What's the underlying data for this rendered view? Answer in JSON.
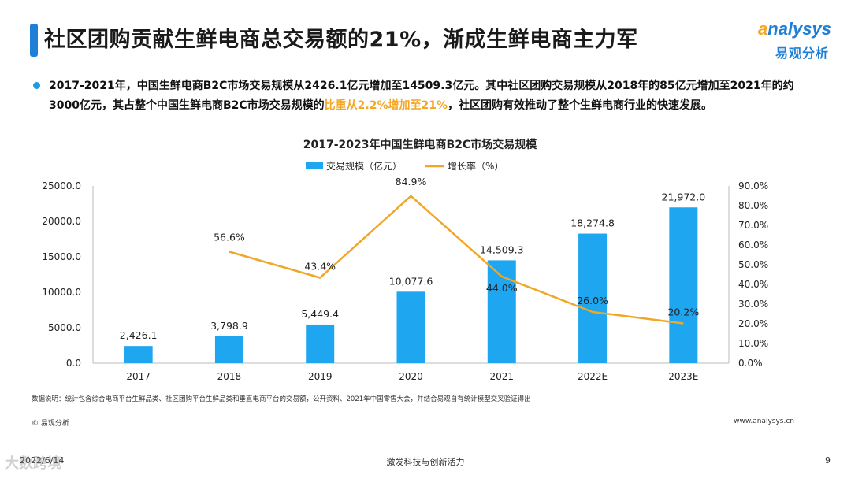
{
  "header": {
    "title": "社区团购贡献生鲜电商总交易额的21%，渐成生鲜电商主力军",
    "logo_en_a": "a",
    "logo_en_rest": "nalysys",
    "logo_cn": "易观分析"
  },
  "summary": {
    "part1": "2017-2021年，中国生鲜电商B2C市场交易规模从2426.1亿元增加至14509.3亿元。其中社区团购交易规模从2018年的85亿元增加至2021年的约3000亿元，其占整个中国生鲜电商B2C市场交易规模的",
    "highlight": "比重从2.2%增加至21%",
    "part2": "，社区团购有效推动了整个生鲜电商行业的快速发展。"
  },
  "colors": {
    "bar": "#1ea7f0",
    "line": "#f0a626",
    "accent": "#1e7fd6"
  },
  "chart_data": {
    "type": "bar",
    "title": "2017-2023年中国生鲜电商B2C市场交易规模",
    "categories": [
      "2017",
      "2018",
      "2019",
      "2020",
      "2021",
      "2022E",
      "2023E"
    ],
    "series": [
      {
        "name": "交易规模（亿元）",
        "type": "bar",
        "axis": "left",
        "values": [
          2426.1,
          3798.9,
          5449.4,
          10077.6,
          14509.3,
          18274.8,
          21972.0
        ],
        "labels": [
          "2,426.1",
          "3,798.9",
          "5,449.4",
          "10,077.6",
          "14,509.3",
          "18,274.8",
          "21,972.0"
        ]
      },
      {
        "name": "增长率（%）",
        "type": "line",
        "axis": "right",
        "values": [
          null,
          56.6,
          43.4,
          84.9,
          44.0,
          26.0,
          20.2
        ],
        "labels": [
          "",
          "56.6%",
          "43.4%",
          "84.9%",
          "44.0%",
          "26.0%",
          "20.2%"
        ]
      }
    ],
    "ylim_left": [
      0,
      25000
    ],
    "ylim_right": [
      0,
      90
    ],
    "left_ticks": [
      "0.0",
      "5000.0",
      "10000.0",
      "15000.0",
      "20000.0",
      "25000.0"
    ],
    "right_ticks": [
      "0.0%",
      "10.0%",
      "20.0%",
      "30.0%",
      "40.0%",
      "50.0%",
      "60.0%",
      "70.0%",
      "80.0%",
      "90.0%"
    ],
    "legend_position": "top-center",
    "grid": false
  },
  "footer": {
    "note": "数据说明：统计包含综合电商平台生鲜品类、社区团购平台生鲜品类和垂直电商平台的交易额，公开资料、2021年中国零售大会，并结合易观自有统计模型交叉验证得出",
    "copyright": "© 易观分析",
    "site": "www.analysys.cn",
    "date": "2022/6/14",
    "slogan": "激发科技与创新活力",
    "page": "9",
    "watermark": "大数跨境"
  }
}
